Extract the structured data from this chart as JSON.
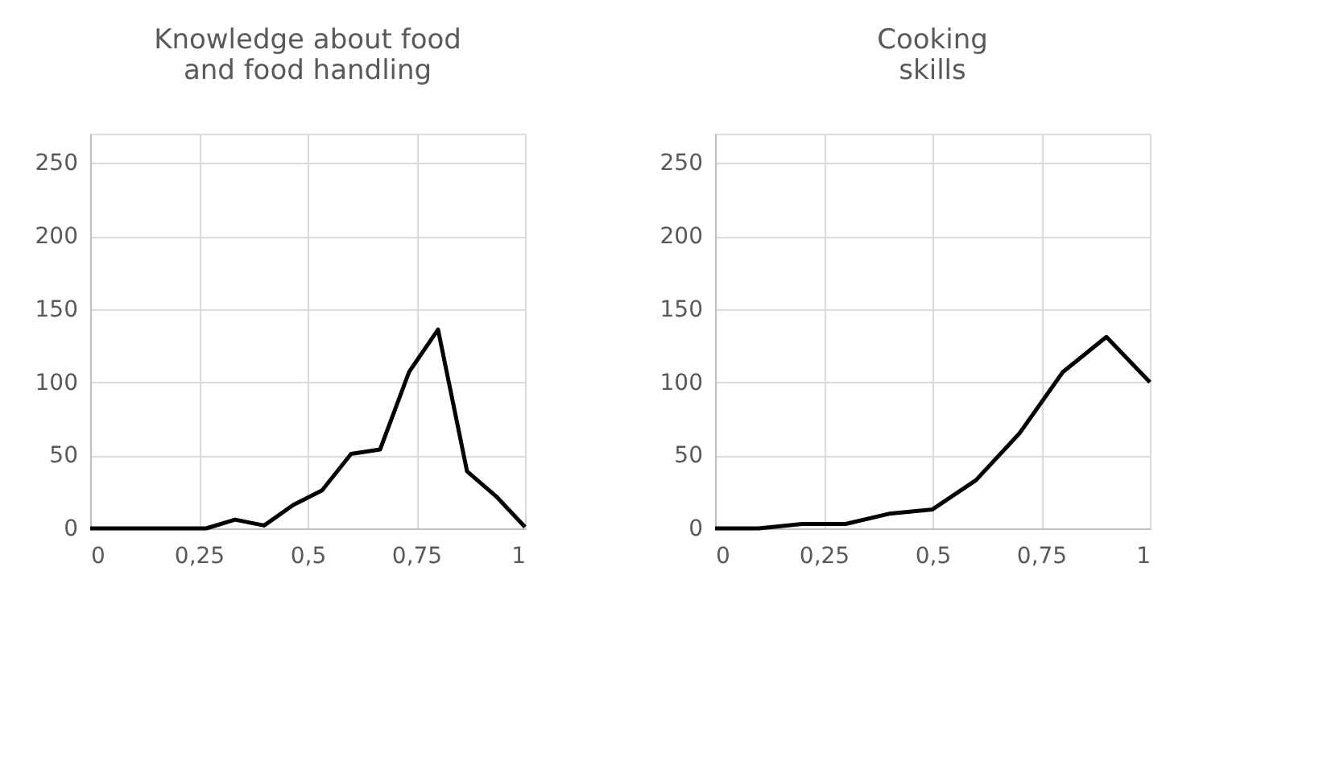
{
  "chart_data": [
    {
      "type": "line",
      "title": "Knowledge about food\nand food handling",
      "x": [
        0,
        0.0667,
        0.1333,
        0.2,
        0.2667,
        0.3333,
        0.4,
        0.4667,
        0.5333,
        0.6,
        0.6667,
        0.7333,
        0.8,
        0.8667,
        0.9333,
        1
      ],
      "series": [
        {
          "color": "#000000",
          "values": [
            0,
            0,
            0,
            0,
            0,
            6,
            2,
            16,
            26,
            51,
            54,
            107,
            136,
            39,
            22,
            1
          ]
        }
      ],
      "xlim": [
        0,
        1
      ],
      "xticks": [
        0,
        {
          "value": 0.25,
          "label": "0,25"
        },
        {
          "value": 0.5,
          "label": "0,5"
        },
        {
          "value": 0.75,
          "label": "0,75"
        },
        1
      ],
      "ylim": [
        0,
        270
      ],
      "yticks": [
        0,
        50,
        100,
        150,
        200,
        250
      ],
      "grid": true,
      "marker": "none",
      "line_style": "solid"
    },
    {
      "type": "line",
      "title": "Cooking\nskills",
      "x": [
        0,
        0.1,
        0.2,
        0.3,
        0.4,
        0.5,
        0.6,
        0.7,
        0.8,
        0.9,
        1
      ],
      "series": [
        {
          "color": "#000000",
          "values": [
            0,
            0,
            3,
            3,
            10,
            13,
            33,
            65,
            107,
            131,
            100
          ]
        }
      ],
      "xlim": [
        0,
        1
      ],
      "xticks": [
        0,
        {
          "value": 0.25,
          "label": "0,25"
        },
        {
          "value": 0.5,
          "label": "0,5"
        },
        {
          "value": 0.75,
          "label": "0,75"
        },
        1
      ],
      "ylim": [
        0,
        270
      ],
      "yticks": [
        0,
        50,
        100,
        150,
        200,
        250
      ],
      "grid": true,
      "marker": "none",
      "line_style": "solid"
    }
  ]
}
